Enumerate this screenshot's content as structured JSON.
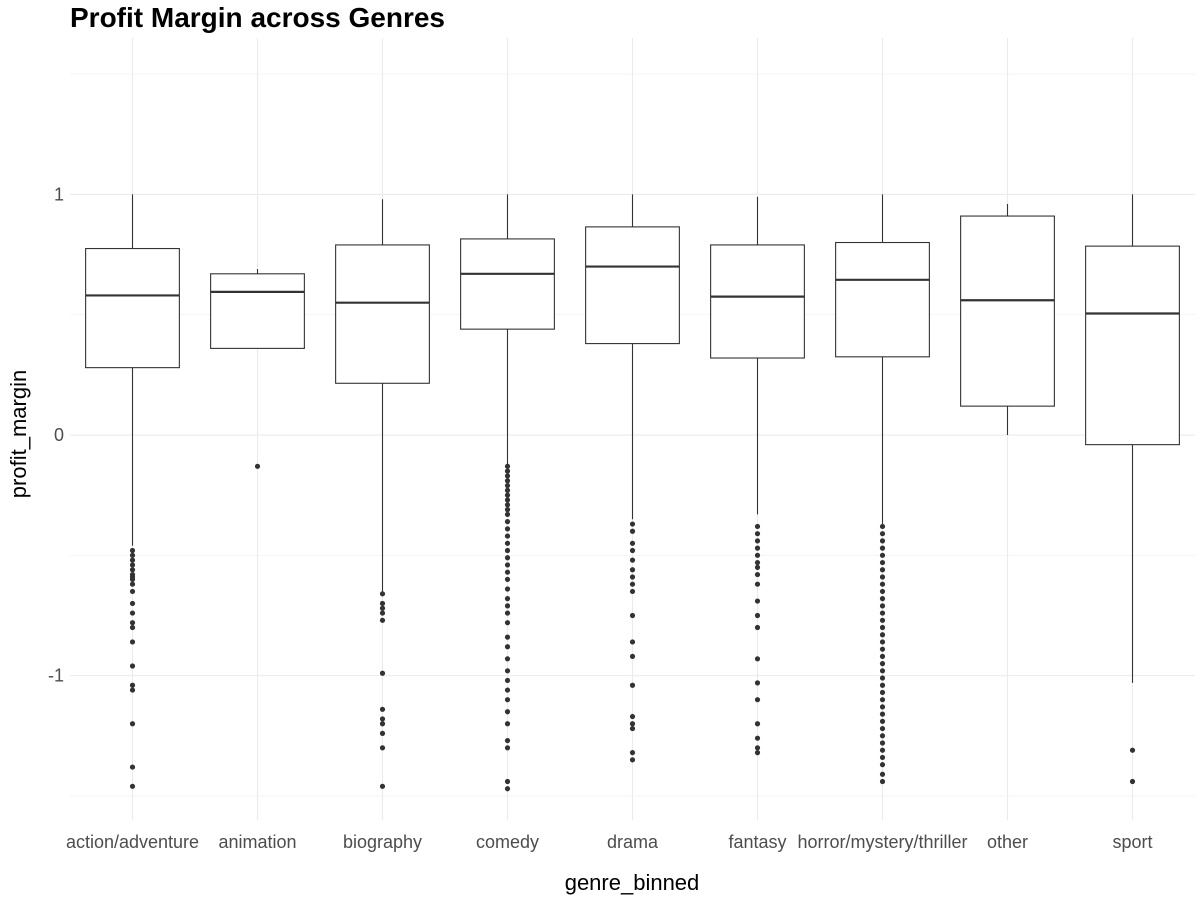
{
  "chart_data": {
    "type": "boxplot",
    "title": "Profit Margin across Genres",
    "xlabel": "genre_binned",
    "ylabel": "profit_margin",
    "ylim": [
      -1.6,
      1.65
    ],
    "yticks": [
      -1,
      0,
      1
    ],
    "grid": true,
    "legend": "none",
    "categories": [
      "action/adventure",
      "animation",
      "biography",
      "comedy",
      "drama",
      "fantasy",
      "horror/mystery/thriller",
      "other",
      "sport"
    ],
    "boxes": [
      {
        "category": "action/adventure",
        "whisker_low": -0.46,
        "q1": 0.28,
        "median": 0.58,
        "q3": 0.775,
        "whisker_high": 1.0,
        "outliers": [
          -0.48,
          -0.5,
          -0.52,
          -0.54,
          -0.56,
          -0.58,
          -0.59,
          -0.6,
          -0.62,
          -0.65,
          -0.7,
          -0.74,
          -0.78,
          -0.8,
          -0.86,
          -0.96,
          -1.04,
          -1.06,
          -1.2,
          -1.38,
          -1.46
        ]
      },
      {
        "category": "animation",
        "whisker_low": 0.36,
        "q1": 0.36,
        "median": 0.595,
        "q3": 0.67,
        "whisker_high": 0.69,
        "outliers": [
          -0.13
        ]
      },
      {
        "category": "biography",
        "whisker_low": -0.65,
        "q1": 0.215,
        "median": 0.55,
        "q3": 0.79,
        "whisker_high": 0.98,
        "outliers": [
          -0.66,
          -0.7,
          -0.72,
          -0.74,
          -0.77,
          -0.99,
          -1.14,
          -1.18,
          -1.2,
          -1.24,
          -1.3,
          -1.46
        ]
      },
      {
        "category": "comedy",
        "whisker_low": -0.14,
        "q1": 0.44,
        "median": 0.67,
        "q3": 0.815,
        "whisker_high": 1.0,
        "outliers": [
          -0.13,
          -0.15,
          -0.17,
          -0.19,
          -0.21,
          -0.23,
          -0.25,
          -0.27,
          -0.29,
          -0.31,
          -0.33,
          -0.36,
          -0.39,
          -0.42,
          -0.45,
          -0.48,
          -0.51,
          -0.54,
          -0.57,
          -0.6,
          -0.64,
          -0.68,
          -0.71,
          -0.74,
          -0.78,
          -0.84,
          -0.88,
          -0.93,
          -0.98,
          -1.02,
          -1.06,
          -1.1,
          -1.15,
          -1.2,
          -1.27,
          -1.3,
          -1.44,
          -1.47
        ]
      },
      {
        "category": "drama",
        "whisker_low": -0.35,
        "q1": 0.38,
        "median": 0.7,
        "q3": 0.865,
        "whisker_high": 1.0,
        "outliers": [
          -0.37,
          -0.4,
          -0.45,
          -0.48,
          -0.52,
          -0.56,
          -0.59,
          -0.62,
          -0.65,
          -0.75,
          -0.86,
          -0.92,
          -1.04,
          -1.17,
          -1.2,
          -1.22,
          -1.32,
          -1.35
        ]
      },
      {
        "category": "fantasy",
        "whisker_low": -0.33,
        "q1": 0.32,
        "median": 0.575,
        "q3": 0.79,
        "whisker_high": 0.99,
        "outliers": [
          -0.38,
          -0.41,
          -0.44,
          -0.47,
          -0.5,
          -0.53,
          -0.55,
          -0.58,
          -0.62,
          -0.69,
          -0.75,
          -0.8,
          -0.93,
          -1.03,
          -1.1,
          -1.2,
          -1.26,
          -1.3,
          -1.32
        ]
      },
      {
        "category": "horror/mystery/thriller",
        "whisker_low": -0.37,
        "q1": 0.325,
        "median": 0.645,
        "q3": 0.8,
        "whisker_high": 1.0,
        "outliers": [
          -0.38,
          -0.41,
          -0.44,
          -0.47,
          -0.5,
          -0.53,
          -0.56,
          -0.59,
          -0.62,
          -0.65,
          -0.68,
          -0.71,
          -0.74,
          -0.77,
          -0.8,
          -0.83,
          -0.86,
          -0.89,
          -0.92,
          -0.95,
          -0.98,
          -1.01,
          -1.04,
          -1.07,
          -1.1,
          -1.13,
          -1.16,
          -1.19,
          -1.22,
          -1.25,
          -1.28,
          -1.31,
          -1.34,
          -1.37,
          -1.41,
          -1.44
        ]
      },
      {
        "category": "other",
        "whisker_low": 0.0,
        "q1": 0.12,
        "median": 0.56,
        "q3": 0.91,
        "whisker_high": 0.96,
        "outliers": []
      },
      {
        "category": "sport",
        "whisker_low": -1.03,
        "q1": -0.04,
        "median": 0.505,
        "q3": 0.785,
        "whisker_high": 1.0,
        "outliers": [
          -1.31,
          -1.44
        ]
      }
    ]
  }
}
